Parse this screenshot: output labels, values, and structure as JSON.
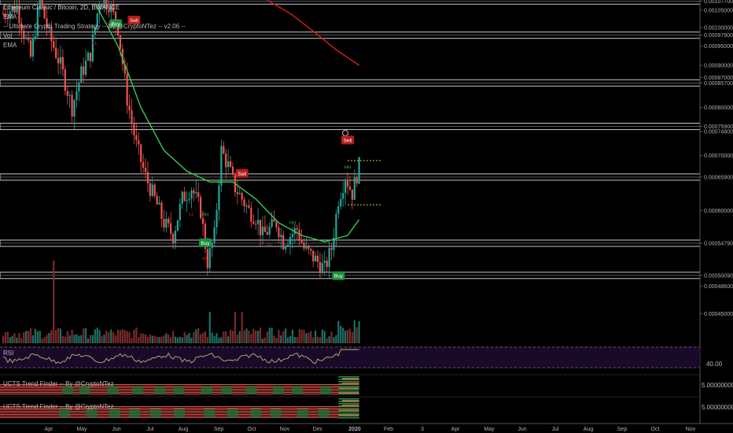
{
  "header": {
    "title": "Ethereum Classic / Bitcoin, 2D, BINANCE",
    "indicators": [
      "EMA",
      "-- Ultimate Crypto Trading Strategy -- By @CryptoNTez -- v2.06 --",
      "Vol",
      "EMA"
    ]
  },
  "panes": {
    "rsi_label": "RSI",
    "rsi_value": "40.00",
    "ucts1_label": "UCTS Trend Finder -- By @CryptoNTez",
    "ucts1_value": "5.00000000",
    "ucts2_label": "UCTS Trend Finder -- By @CryptoNTez",
    "ucts2_value": "5.00000000"
  },
  "colors": {
    "up": "#26a69a",
    "down": "#ef5350",
    "ema_fast": "#33cc55",
    "ema_slow": "#d32020",
    "band": "#c8c8c8",
    "rsi_bg": "#1a0a2a",
    "rsi_line": "#c8b070",
    "signal_buy": "#1b8f3a",
    "signal_sell": "#b71c1c",
    "label_hh": "#2ea84d",
    "label_ll": "#c62828"
  },
  "chart_data": {
    "type": "candlestick",
    "title": "Ethereum Classic / Bitcoin, 2D, BINANCE",
    "exchange": "BINANCE",
    "timeframe": "2D",
    "y_scale": "log",
    "ylim": [
      0.00042,
      0.00108
    ],
    "y_ticks": [
      "0.00107700",
      "0.00105000",
      "0.00100000",
      "0.00097900",
      "0.00095000",
      "0.00090000",
      "0.00087000",
      "0.00085700",
      "0.00080000",
      "0.00075900",
      "0.00074800",
      "0.00070000",
      "0.00065900",
      "0.00060000",
      "0.00054790",
      "0.00050090",
      "0.00048600",
      "0.00045000"
    ],
    "x_ticks": [
      "Apr",
      "May",
      "Jun",
      "Jul",
      "Aug",
      "Sep",
      "Oct",
      "Nov",
      "Dec",
      "2020",
      "Feb",
      "3",
      "Apr",
      "May",
      "Jun",
      "Jul",
      "Aug",
      "Sep",
      "Oct",
      "Nov"
    ],
    "horizontal_bands": [
      0.001077,
      0.000979,
      0.000857,
      0.000759,
      0.000659,
      0.0005479,
      0.0005009
    ],
    "price_path": [
      {
        "t": 0,
        "p": 0.00104
      },
      {
        "t": 6,
        "p": 0.00106
      },
      {
        "t": 12,
        "p": 0.00092
      },
      {
        "t": 16,
        "p": 0.00108
      },
      {
        "t": 20,
        "p": 0.00098
      },
      {
        "t": 25,
        "p": 0.0009
      },
      {
        "t": 30,
        "p": 0.0008
      },
      {
        "t": 34,
        "p": 0.00088
      },
      {
        "t": 38,
        "p": 0.00093
      },
      {
        "t": 42,
        "p": 0.00108
      },
      {
        "t": 46,
        "p": 0.00107
      },
      {
        "t": 50,
        "p": 0.001
      },
      {
        "t": 54,
        "p": 0.00082
      },
      {
        "t": 58,
        "p": 0.00072
      },
      {
        "t": 62,
        "p": 0.00066
      },
      {
        "t": 66,
        "p": 0.00062
      },
      {
        "t": 70,
        "p": 0.00058
      },
      {
        "t": 74,
        "p": 0.00056
      },
      {
        "t": 78,
        "p": 0.00062
      },
      {
        "t": 82,
        "p": 0.00064
      },
      {
        "t": 86,
        "p": 0.0006
      },
      {
        "t": 89,
        "p": 0.00052
      },
      {
        "t": 92,
        "p": 0.00056
      },
      {
        "t": 95,
        "p": 0.00071
      },
      {
        "t": 98,
        "p": 0.00068
      },
      {
        "t": 101,
        "p": 0.00064
      },
      {
        "t": 104,
        "p": 0.00062
      },
      {
        "t": 107,
        "p": 0.0006
      },
      {
        "t": 110,
        "p": 0.00059
      },
      {
        "t": 113,
        "p": 0.00056
      },
      {
        "t": 116,
        "p": 0.00057
      },
      {
        "t": 119,
        "p": 0.00058
      },
      {
        "t": 122,
        "p": 0.00055
      },
      {
        "t": 125,
        "p": 0.00056
      },
      {
        "t": 128,
        "p": 0.00057
      },
      {
        "t": 131,
        "p": 0.00054
      },
      {
        "t": 134,
        "p": 0.00053
      },
      {
        "t": 137,
        "p": 0.00052
      },
      {
        "t": 140,
        "p": 0.00051
      },
      {
        "t": 143,
        "p": 0.00054
      },
      {
        "t": 146,
        "p": 0.00062
      },
      {
        "t": 149,
        "p": 0.00066
      },
      {
        "t": 152,
        "p": 0.00063
      },
      {
        "t": 155,
        "p": 0.00068
      }
    ],
    "ema_fast": [
      {
        "t": 40,
        "p": 0.00107
      },
      {
        "t": 50,
        "p": 0.00095
      },
      {
        "t": 60,
        "p": 0.0008
      },
      {
        "t": 70,
        "p": 0.00071
      },
      {
        "t": 80,
        "p": 0.00067
      },
      {
        "t": 90,
        "p": 0.00065
      },
      {
        "t": 100,
        "p": 0.00065
      },
      {
        "t": 110,
        "p": 0.00062
      },
      {
        "t": 120,
        "p": 0.00058
      },
      {
        "t": 130,
        "p": 0.00056
      },
      {
        "t": 140,
        "p": 0.00055
      },
      {
        "t": 150,
        "p": 0.00056
      },
      {
        "t": 155,
        "p": 0.000585
      }
    ],
    "ema_slow": [
      {
        "t": 115,
        "p": 0.00108
      },
      {
        "t": 125,
        "p": 0.00104
      },
      {
        "t": 135,
        "p": 0.00099
      },
      {
        "t": 145,
        "p": 0.00094
      },
      {
        "t": 155,
        "p": 0.0009
      }
    ],
    "signals": [
      {
        "t": 49,
        "type": "Buy",
        "p": 0.00101
      },
      {
        "t": 57,
        "type": "Sell",
        "p": 0.00102
      },
      {
        "t": 88,
        "type": "Buy",
        "p": 0.000548
      },
      {
        "t": 104,
        "type": "Sell",
        "p": 0.000665
      },
      {
        "t": 146,
        "type": "Buy",
        "p": 0.0005
      },
      {
        "t": 150,
        "type": "Sell",
        "p": 0.00073
      }
    ],
    "swing_labels": [
      {
        "t": 44,
        "text": "HH",
        "hi": true
      },
      {
        "t": 46,
        "text": "HL",
        "hi": false
      },
      {
        "t": 40,
        "text": "LL",
        "hi": false
      },
      {
        "t": 88,
        "text": "HH",
        "hi": true
      },
      {
        "t": 88,
        "text": "HL",
        "hi": false
      },
      {
        "t": 82,
        "text": "LL",
        "hi": false
      },
      {
        "t": 116,
        "text": "LL",
        "hi": false
      },
      {
        "t": 126,
        "text": "HH",
        "hi": true
      },
      {
        "t": 150,
        "text": "HH",
        "hi": true
      }
    ],
    "xlabel": "",
    "ylabel": ""
  }
}
